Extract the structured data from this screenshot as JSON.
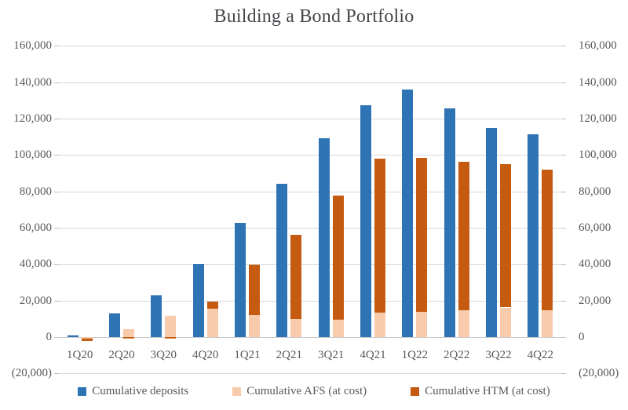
{
  "title": "Building a Bond Portfolio",
  "colors": {
    "deposits": "#2e74b5",
    "afs": "#f7cbac",
    "htm": "#c55a11",
    "gridline": "#d9d9d9",
    "axis_text": "#595959",
    "title_text": "#44464a"
  },
  "y_axis": {
    "tick_values": [
      160000,
      140000,
      120000,
      100000,
      80000,
      60000,
      40000,
      20000,
      0,
      -20000
    ],
    "tick_labels": [
      "160,000",
      "140,000",
      "120,000",
      "100,000",
      "80,000",
      "60,000",
      "40,000",
      "20,000",
      "0",
      "(20,000)"
    ]
  },
  "legend": {
    "items": [
      {
        "label": "Cumulative deposits",
        "color": "#2e74b5"
      },
      {
        "label": "Cumulative AFS (at cost)",
        "color": "#f7cbac"
      },
      {
        "label": "Cumulative HTM (at cost)",
        "color": "#c55a11"
      }
    ]
  },
  "chart_data": {
    "type": "bar",
    "title": "Building a Bond Portfolio",
    "xlabel": "",
    "ylabel": "",
    "ylim": [
      -20000,
      160000
    ],
    "ytick_step": 20000,
    "grid": true,
    "legend_position": "bottom",
    "value_axis_on_both_sides": true,
    "negative_number_format": "parentheses",
    "categories": [
      "1Q20",
      "2Q20",
      "3Q20",
      "4Q20",
      "1Q21",
      "2Q21",
      "3Q21",
      "4Q21",
      "1Q22",
      "2Q22",
      "3Q22",
      "4Q22"
    ],
    "series": [
      {
        "name": "Cumulative deposits",
        "color": "#2e74b5",
        "stack": "deposits",
        "values": [
          800,
          12800,
          22700,
          40300,
          62500,
          84000,
          109200,
          127400,
          135800,
          125500,
          114900,
          111500
        ]
      },
      {
        "name": "Cumulative AFS (at cost)",
        "color": "#f7cbac",
        "stack": "portfolio",
        "values": [
          -700,
          4200,
          11600,
          15600,
          12200,
          10000,
          9300,
          13500,
          13900,
          14500,
          16200,
          14500
        ]
      },
      {
        "name": "Cumulative HTM (at cost)",
        "color": "#c55a11",
        "stack": "portfolio",
        "values": [
          -1400,
          -800,
          -800,
          3700,
          27500,
          46000,
          68400,
          84600,
          84300,
          81700,
          78900,
          77600
        ]
      }
    ]
  }
}
